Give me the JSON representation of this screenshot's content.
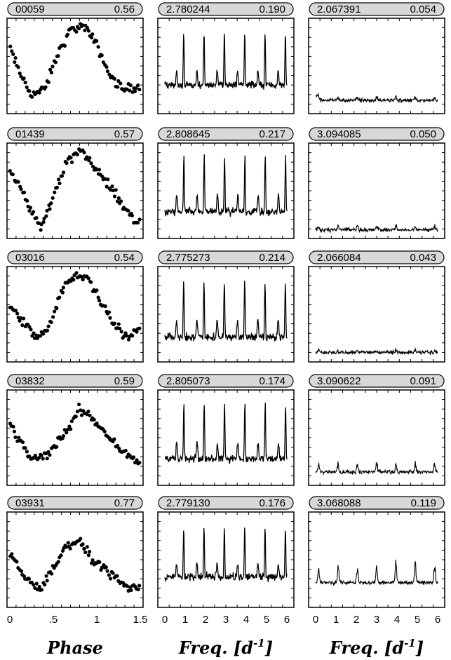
{
  "chart_data": {
    "type": "panel-grid",
    "columns": [
      {
        "kind": "scatter",
        "x_range": [
          0,
          1.5
        ],
        "x_tick_labels": [
          "0",
          ".5",
          "1",
          "1.5"
        ],
        "x_tick_values": [
          0,
          0.5,
          1,
          1.5
        ],
        "axis_label": "Phase",
        "axis_label_sup": ""
      },
      {
        "kind": "line",
        "x_range": [
          0,
          6
        ],
        "x_tick_labels": [
          "0",
          "1",
          "2",
          "3",
          "4",
          "5",
          "6"
        ],
        "x_tick_values": [
          0,
          1,
          2,
          3,
          4,
          5,
          6
        ],
        "axis_label": "Freq.  [d",
        "axis_label_sup": "-1",
        "axis_label_end": "]"
      },
      {
        "kind": "line",
        "x_range": [
          0,
          6
        ],
        "x_tick_labels": [
          "0",
          "1",
          "2",
          "3",
          "4",
          "5",
          "6"
        ],
        "x_tick_values": [
          0,
          1,
          2,
          3,
          4,
          5,
          6
        ],
        "axis_label": "Freq.  [d",
        "axis_label_sup": "-1",
        "axis_label_end": "]"
      }
    ],
    "rows": [
      {
        "star": "00059",
        "amp": "0.56",
        "freq1": "2.780244",
        "power1": "0.190",
        "freq2": "2.067391",
        "power2": "0.054",
        "lc_profile": [
          [
            0,
            0.7
          ],
          [
            0.1,
            0.45
          ],
          [
            0.25,
            0.2
          ],
          [
            0.4,
            0.25
          ],
          [
            0.55,
            0.62
          ],
          [
            0.7,
            0.88
          ],
          [
            0.85,
            0.92
          ],
          [
            1.0,
            0.72
          ],
          [
            1.15,
            0.4
          ],
          [
            1.3,
            0.25
          ],
          [
            1.45,
            0.28
          ],
          [
            1.5,
            0.3
          ]
        ],
        "peak_freq": 0.9275,
        "peak_height": 0.94,
        "noise_level": 0.3,
        "level2": 0.14,
        "spike2": 0.03
      },
      {
        "star": "01439",
        "amp": "0.57",
        "freq1": "2.808645",
        "power1": "0.217",
        "freq2": "3.094085",
        "power2": "0.050",
        "lc_profile": [
          [
            0,
            0.72
          ],
          [
            0.1,
            0.58
          ],
          [
            0.25,
            0.28
          ],
          [
            0.35,
            0.12
          ],
          [
            0.5,
            0.45
          ],
          [
            0.65,
            0.8
          ],
          [
            0.8,
            0.92
          ],
          [
            0.95,
            0.78
          ],
          [
            1.1,
            0.6
          ],
          [
            1.3,
            0.35
          ],
          [
            1.45,
            0.18
          ],
          [
            1.5,
            0.2
          ]
        ],
        "peak_freq": 0.9362,
        "peak_height": 0.96,
        "noise_level": 0.28,
        "level2": 0.09,
        "spike2": 0.04
      },
      {
        "star": "03016",
        "amp": "0.54",
        "freq1": "2.775273",
        "power1": "0.214",
        "freq2": "2.066084",
        "power2": "0.043",
        "lc_profile": [
          [
            0,
            0.58
          ],
          [
            0.15,
            0.42
          ],
          [
            0.3,
            0.25
          ],
          [
            0.45,
            0.35
          ],
          [
            0.6,
            0.75
          ],
          [
            0.75,
            0.92
          ],
          [
            0.9,
            0.88
          ],
          [
            1.05,
            0.62
          ],
          [
            1.2,
            0.42
          ],
          [
            1.35,
            0.25
          ],
          [
            1.5,
            0.38
          ]
        ],
        "peak_freq": 0.9251,
        "peak_height": 0.93,
        "noise_level": 0.26,
        "level2": 0.1,
        "spike2": 0.02
      },
      {
        "star": "03832",
        "amp": "0.59",
        "freq1": "2.805073",
        "power1": "0.174",
        "freq2": "3.090622",
        "power2": "0.091",
        "lc_profile": [
          [
            0,
            0.65
          ],
          [
            0.1,
            0.48
          ],
          [
            0.25,
            0.28
          ],
          [
            0.4,
            0.3
          ],
          [
            0.55,
            0.45
          ],
          [
            0.7,
            0.62
          ],
          [
            0.8,
            0.8
          ],
          [
            0.95,
            0.7
          ],
          [
            1.1,
            0.55
          ],
          [
            1.25,
            0.4
          ],
          [
            1.4,
            0.28
          ],
          [
            1.5,
            0.25
          ]
        ],
        "peak_freq": 0.935,
        "peak_height": 0.94,
        "noise_level": 0.28,
        "level2": 0.14,
        "spike2": 0.08
      },
      {
        "star": "03931",
        "amp": "0.77",
        "freq1": "2.779130",
        "power1": "0.176",
        "freq2": "3.068088",
        "power2": "0.119",
        "lc_profile": [
          [
            0,
            0.55
          ],
          [
            0.1,
            0.42
          ],
          [
            0.2,
            0.28
          ],
          [
            0.35,
            0.2
          ],
          [
            0.5,
            0.4
          ],
          [
            0.65,
            0.65
          ],
          [
            0.8,
            0.7
          ],
          [
            0.95,
            0.5
          ],
          [
            1.1,
            0.42
          ],
          [
            1.2,
            0.3
          ],
          [
            1.35,
            0.2
          ],
          [
            1.5,
            0.22
          ]
        ],
        "peak_freq": 0.9264,
        "peak_height": 0.94,
        "noise_level": 0.32,
        "level2": 0.26,
        "spike2": 0.18
      }
    ]
  }
}
